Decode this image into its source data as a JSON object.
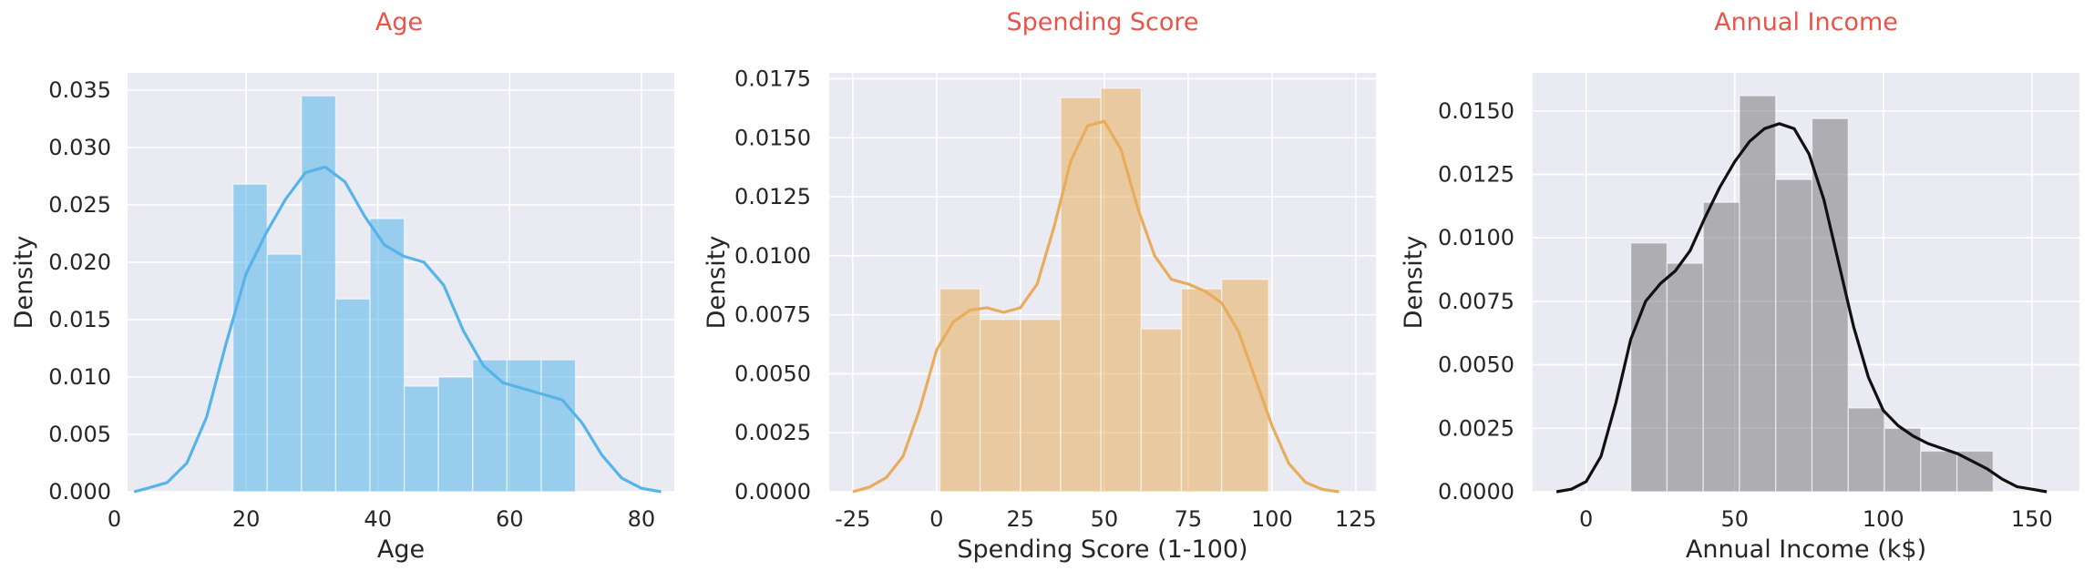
{
  "colors": {
    "title": "#e8534a",
    "panel_bg": "#eaeaf2",
    "grid": "#ffffff",
    "text": "#262626"
  },
  "chart_data": [
    {
      "type": "histogram",
      "title": "Age",
      "xlabel": "Age",
      "ylabel": "Density",
      "xlim": [
        2,
        85
      ],
      "ylim": [
        0,
        0.0365
      ],
      "xticks": [
        0,
        20,
        40,
        60,
        80
      ],
      "yticks": [
        0.0,
        0.005,
        0.01,
        0.015,
        0.02,
        0.025,
        0.03,
        0.035
      ],
      "ytick_decimals": 3,
      "color": "#56b4e9",
      "bins": [
        {
          "x0": 18.0,
          "x1": 23.2,
          "density": 0.0268
        },
        {
          "x0": 23.2,
          "x1": 28.4,
          "density": 0.0207
        },
        {
          "x0": 28.4,
          "x1": 33.6,
          "density": 0.0345
        },
        {
          "x0": 33.6,
          "x1": 38.8,
          "density": 0.0168
        },
        {
          "x0": 38.8,
          "x1": 44.0,
          "density": 0.0238
        },
        {
          "x0": 44.0,
          "x1": 49.2,
          "density": 0.0092
        },
        {
          "x0": 49.2,
          "x1": 54.4,
          "density": 0.01
        },
        {
          "x0": 54.4,
          "x1": 59.6,
          "density": 0.0115
        },
        {
          "x0": 59.6,
          "x1": 64.8,
          "density": 0.0115
        },
        {
          "x0": 64.8,
          "x1": 70.0,
          "density": 0.0115
        }
      ],
      "kde": [
        [
          3,
          0
        ],
        [
          5,
          0.0003
        ],
        [
          8,
          0.0008
        ],
        [
          11,
          0.0025
        ],
        [
          14,
          0.0065
        ],
        [
          17,
          0.013
        ],
        [
          20,
          0.019
        ],
        [
          23,
          0.0225
        ],
        [
          26,
          0.0255
        ],
        [
          29,
          0.0278
        ],
        [
          32,
          0.0283
        ],
        [
          35,
          0.027
        ],
        [
          38,
          0.024
        ],
        [
          41,
          0.0215
        ],
        [
          44,
          0.0205
        ],
        [
          47,
          0.02
        ],
        [
          50,
          0.018
        ],
        [
          53,
          0.014
        ],
        [
          56,
          0.011
        ],
        [
          59,
          0.0095
        ],
        [
          62,
          0.009
        ],
        [
          65,
          0.0085
        ],
        [
          68,
          0.008
        ],
        [
          71,
          0.006
        ],
        [
          74,
          0.0032
        ],
        [
          77,
          0.0012
        ],
        [
          80,
          0.0003
        ],
        [
          83,
          0
        ]
      ]
    },
    {
      "type": "histogram",
      "title": "Spending Score",
      "xlabel": "Spending Score (1-100)",
      "ylabel": "Density",
      "xlim": [
        -32,
        131
      ],
      "ylim": [
        0,
        0.01775
      ],
      "xticks": [
        -25,
        0,
        25,
        50,
        75,
        100,
        125
      ],
      "yticks": [
        0.0,
        0.0025,
        0.005,
        0.0075,
        0.01,
        0.0125,
        0.015,
        0.0175
      ],
      "ytick_decimals": 4,
      "color": "#e8ad5c",
      "bins": [
        {
          "x0": 1.0,
          "x1": 13.0,
          "density": 0.0086
        },
        {
          "x0": 13.0,
          "x1": 25.0,
          "density": 0.0073
        },
        {
          "x0": 25.0,
          "x1": 37.0,
          "density": 0.0073
        },
        {
          "x0": 37.0,
          "x1": 49.0,
          "density": 0.0167
        },
        {
          "x0": 49.0,
          "x1": 61.0,
          "density": 0.0171
        },
        {
          "x0": 61.0,
          "x1": 73.0,
          "density": 0.0069
        },
        {
          "x0": 73.0,
          "x1": 85.0,
          "density": 0.0086
        },
        {
          "x0": 85.0,
          "x1": 99.0,
          "density": 0.009
        }
      ],
      "kde": [
        [
          -25,
          0
        ],
        [
          -20,
          0.0002
        ],
        [
          -15,
          0.0006
        ],
        [
          -10,
          0.0015
        ],
        [
          -5,
          0.0035
        ],
        [
          0,
          0.006
        ],
        [
          5,
          0.0072
        ],
        [
          10,
          0.0077
        ],
        [
          15,
          0.0078
        ],
        [
          20,
          0.0076
        ],
        [
          25,
          0.0078
        ],
        [
          30,
          0.0088
        ],
        [
          35,
          0.0112
        ],
        [
          40,
          0.014
        ],
        [
          45,
          0.0155
        ],
        [
          50,
          0.0157
        ],
        [
          55,
          0.0145
        ],
        [
          60,
          0.012
        ],
        [
          65,
          0.01
        ],
        [
          70,
          0.009
        ],
        [
          75,
          0.0088
        ],
        [
          80,
          0.0085
        ],
        [
          85,
          0.008
        ],
        [
          90,
          0.0068
        ],
        [
          95,
          0.0048
        ],
        [
          100,
          0.0028
        ],
        [
          105,
          0.0012
        ],
        [
          110,
          0.0004
        ],
        [
          115,
          0.0001
        ],
        [
          120,
          0
        ]
      ]
    },
    {
      "type": "histogram",
      "title": "Annual Income",
      "xlabel": "Annual Income (k$)",
      "ylabel": "Density",
      "xlim": [
        -18,
        166
      ],
      "ylim": [
        0,
        0.0165
      ],
      "xticks": [
        0,
        50,
        100,
        150
      ],
      "yticks": [
        0.0,
        0.0025,
        0.005,
        0.0075,
        0.01,
        0.0125,
        0.015
      ],
      "ytick_decimals": 4,
      "color": "#7b7a7d",
      "line_color": "#111111",
      "bins": [
        {
          "x0": 15.0,
          "x1": 27.2,
          "density": 0.0098
        },
        {
          "x0": 27.2,
          "x1": 39.4,
          "density": 0.009
        },
        {
          "x0": 39.4,
          "x1": 51.6,
          "density": 0.0114
        },
        {
          "x0": 51.6,
          "x1": 63.8,
          "density": 0.0156
        },
        {
          "x0": 63.8,
          "x1": 76.0,
          "density": 0.0123
        },
        {
          "x0": 76.0,
          "x1": 88.2,
          "density": 0.0147
        },
        {
          "x0": 88.2,
          "x1": 100.4,
          "density": 0.0033
        },
        {
          "x0": 100.4,
          "x1": 112.6,
          "density": 0.0025
        },
        {
          "x0": 112.6,
          "x1": 124.8,
          "density": 0.0016
        },
        {
          "x0": 124.8,
          "x1": 137.0,
          "density": 0.0016
        }
      ],
      "kde": [
        [
          -10,
          0
        ],
        [
          -5,
          0.0001
        ],
        [
          0,
          0.0004
        ],
        [
          5,
          0.0014
        ],
        [
          10,
          0.0035
        ],
        [
          15,
          0.006
        ],
        [
          20,
          0.0075
        ],
        [
          25,
          0.0082
        ],
        [
          30,
          0.0087
        ],
        [
          35,
          0.0095
        ],
        [
          40,
          0.0108
        ],
        [
          45,
          0.012
        ],
        [
          50,
          0.013
        ],
        [
          55,
          0.0138
        ],
        [
          60,
          0.0143
        ],
        [
          65,
          0.0145
        ],
        [
          70,
          0.0143
        ],
        [
          75,
          0.0133
        ],
        [
          80,
          0.0115
        ],
        [
          85,
          0.009
        ],
        [
          90,
          0.0065
        ],
        [
          95,
          0.0045
        ],
        [
          100,
          0.0032
        ],
        [
          105,
          0.0026
        ],
        [
          110,
          0.0022
        ],
        [
          115,
          0.0019
        ],
        [
          120,
          0.0017
        ],
        [
          125,
          0.0015
        ],
        [
          130,
          0.0012
        ],
        [
          135,
          0.0009
        ],
        [
          140,
          0.0005
        ],
        [
          145,
          0.0002
        ],
        [
          150,
          0.0001
        ],
        [
          155,
          0
        ]
      ]
    }
  ]
}
